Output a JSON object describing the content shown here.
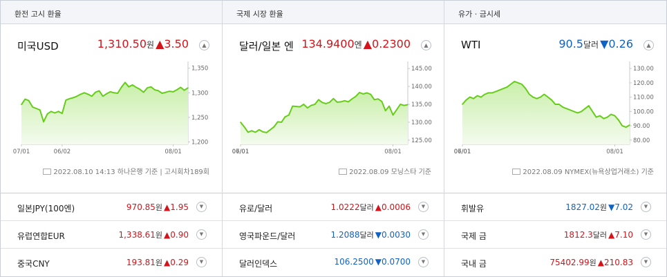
{
  "panels": [
    {
      "header": "환전 고시 환율",
      "main": {
        "name": "미국USD",
        "value": "1,310.50",
        "unit": "원",
        "change": "▲3.50",
        "direction": "up"
      },
      "source": "2022.08.10 14:13 하나은행 기준 | 고시회차189회",
      "rows": [
        {
          "name": "일본JPY(100엔)",
          "value": "970.85",
          "unit": "원",
          "change": "▲1.95",
          "direction": "up"
        },
        {
          "name": "유럽연합EUR",
          "value": "1,338.61",
          "unit": "원",
          "change": "▲0.90",
          "direction": "up"
        },
        {
          "name": "중국CNY",
          "value": "193.81",
          "unit": "원",
          "change": "▲0.29",
          "direction": "up"
        }
      ]
    },
    {
      "header": "국제 시장 환율",
      "main": {
        "name": "달러/일본 엔",
        "value": "134.9400",
        "unit": "엔",
        "change": "▲0.2300",
        "direction": "up"
      },
      "source": "2022.08.09 모닝스타 기준",
      "rows": [
        {
          "name": "유로/달러",
          "value": "1.0222",
          "unit": "달러",
          "change": "▲0.0006",
          "direction": "up"
        },
        {
          "name": "영국파운드/달러",
          "value": "1.2088",
          "unit": "달러",
          "change": "▼0.0030",
          "direction": "down"
        },
        {
          "name": "달러인덱스",
          "value": "106.2500",
          "unit": "",
          "change": "▼0.0700",
          "direction": "down"
        }
      ]
    },
    {
      "header": "유가 · 금시세",
      "main": {
        "name": "WTI",
        "value": "90.5",
        "unit": "달러",
        "change": "▼0.26",
        "direction": "down"
      },
      "source": "2022.08.09 NYMEX(뉴욕상업거래소) 기준",
      "rows": [
        {
          "name": "휘발유",
          "value": "1827.02",
          "unit": "원",
          "change": "▼7.02",
          "direction": "down"
        },
        {
          "name": "국제 금",
          "value": "1812.3",
          "unit": "달러",
          "change": "▲7.10",
          "direction": "up"
        },
        {
          "name": "국내 금",
          "value": "75402.99",
          "unit": "원",
          "change": "▲210.83",
          "direction": "up"
        }
      ]
    }
  ],
  "toggle_icon": "▲",
  "colors": {
    "line": "#66cc1a",
    "fill_top": "#c9efaa",
    "fill_bottom": "#f4fbee",
    "up": "#d3141a",
    "down": "#1062c4",
    "axis": "#c4c8ce",
    "tick_text": "#666666"
  },
  "chart_data": [
    {
      "type": "area",
      "title": "",
      "x": [
        "05/11",
        "05/13",
        "05/15",
        "05/17",
        "05/19",
        "05/21",
        "05/23",
        "05/25",
        "05/27",
        "05/29",
        "05/31",
        "06/02",
        "06/04",
        "06/06",
        "06/08",
        "06/10",
        "06/12",
        "06/14",
        "06/16",
        "06/18",
        "06/20",
        "06/22",
        "06/24",
        "06/26",
        "06/28",
        "06/30",
        "07/02",
        "07/04",
        "07/06",
        "07/08",
        "07/10",
        "07/12",
        "07/14",
        "07/16",
        "07/18",
        "07/20",
        "07/22",
        "07/24",
        "07/26",
        "07/28",
        "07/30",
        "08/01",
        "08/03",
        "08/05",
        "08/07",
        "08/09"
      ],
      "values": [
        1276,
        1287,
        1284,
        1271,
        1268,
        1265,
        1241,
        1257,
        1262,
        1259,
        1262,
        1258,
        1285,
        1288,
        1290,
        1293,
        1297,
        1300,
        1297,
        1293,
        1301,
        1304,
        1293,
        1298,
        1302,
        1300,
        1299,
        1311,
        1321,
        1312,
        1316,
        1311,
        1307,
        1301,
        1310,
        1312,
        1306,
        1304,
        1299,
        1301,
        1303,
        1302,
        1306,
        1311,
        1305,
        1310
      ],
      "xticks": [
        "06/02",
        "07/01",
        "08/01"
      ],
      "yticks": [
        1200,
        1250,
        1300,
        1350
      ],
      "ylim": [
        1195,
        1358
      ]
    },
    {
      "type": "area",
      "title": "",
      "x": [
        "05/11",
        "05/13",
        "05/15",
        "05/17",
        "05/19",
        "05/21",
        "05/23",
        "05/25",
        "05/27",
        "05/29",
        "05/31",
        "06/02",
        "06/04",
        "06/06",
        "06/08",
        "06/10",
        "06/12",
        "06/14",
        "06/16",
        "06/18",
        "06/20",
        "06/22",
        "06/24",
        "06/26",
        "06/28",
        "06/30",
        "07/02",
        "07/04",
        "07/06",
        "07/08",
        "07/10",
        "07/12",
        "07/14",
        "07/16",
        "07/18",
        "07/20",
        "07/22",
        "07/24",
        "07/26",
        "07/28",
        "07/30",
        "08/01",
        "08/03",
        "08/05",
        "08/07",
        "08/09"
      ],
      "values": [
        130.0,
        128.7,
        127.2,
        127.6,
        127.2,
        127.9,
        127.3,
        127.1,
        127.9,
        128.7,
        130.1,
        130.0,
        131.5,
        132.0,
        134.5,
        134.4,
        134.3,
        135.0,
        134.0,
        134.7,
        135.0,
        136.3,
        135.5,
        135.2,
        135.6,
        136.6,
        135.6,
        135.7,
        136.0,
        135.7,
        136.5,
        137.2,
        138.3,
        137.9,
        138.2,
        137.8,
        136.3,
        136.5,
        135.8,
        133.2,
        134.5,
        132.0,
        133.5,
        135.0,
        134.7,
        134.9
      ],
      "xticks": [
        "06/01",
        "07/01",
        "08/01"
      ],
      "yticks": [
        125.0,
        130.0,
        135.0,
        140.0,
        145.0
      ],
      "ylim": [
        123.8,
        146.2
      ]
    },
    {
      "type": "area",
      "title": "",
      "x": [
        "05/11",
        "05/13",
        "05/15",
        "05/17",
        "05/19",
        "05/21",
        "05/23",
        "05/25",
        "05/27",
        "05/29",
        "05/31",
        "06/02",
        "06/04",
        "06/06",
        "06/08",
        "06/10",
        "06/12",
        "06/14",
        "06/16",
        "06/18",
        "06/20",
        "06/22",
        "06/24",
        "06/26",
        "06/28",
        "06/30",
        "07/02",
        "07/04",
        "07/06",
        "07/08",
        "07/10",
        "07/12",
        "07/14",
        "07/16",
        "07/18",
        "07/20",
        "07/22",
        "07/24",
        "07/26",
        "07/28",
        "07/30",
        "08/01",
        "08/03",
        "08/05",
        "08/07",
        "08/09"
      ],
      "values": [
        105,
        108,
        110,
        109,
        111,
        110,
        112,
        113,
        113,
        114,
        115,
        116,
        117,
        119,
        121,
        120,
        119,
        116,
        112,
        110,
        109,
        110,
        112,
        110,
        108,
        105,
        105,
        103,
        102,
        101,
        100,
        99,
        100,
        102,
        104,
        100,
        96,
        97,
        95,
        96,
        98,
        97,
        94,
        90,
        89,
        90.5
      ],
      "xticks": [
        "06/01",
        "07/01",
        "08/01"
      ],
      "yticks": [
        80.0,
        90.0,
        100.0,
        110.0,
        120.0,
        130.0
      ],
      "ylim": [
        77,
        133
      ]
    }
  ]
}
